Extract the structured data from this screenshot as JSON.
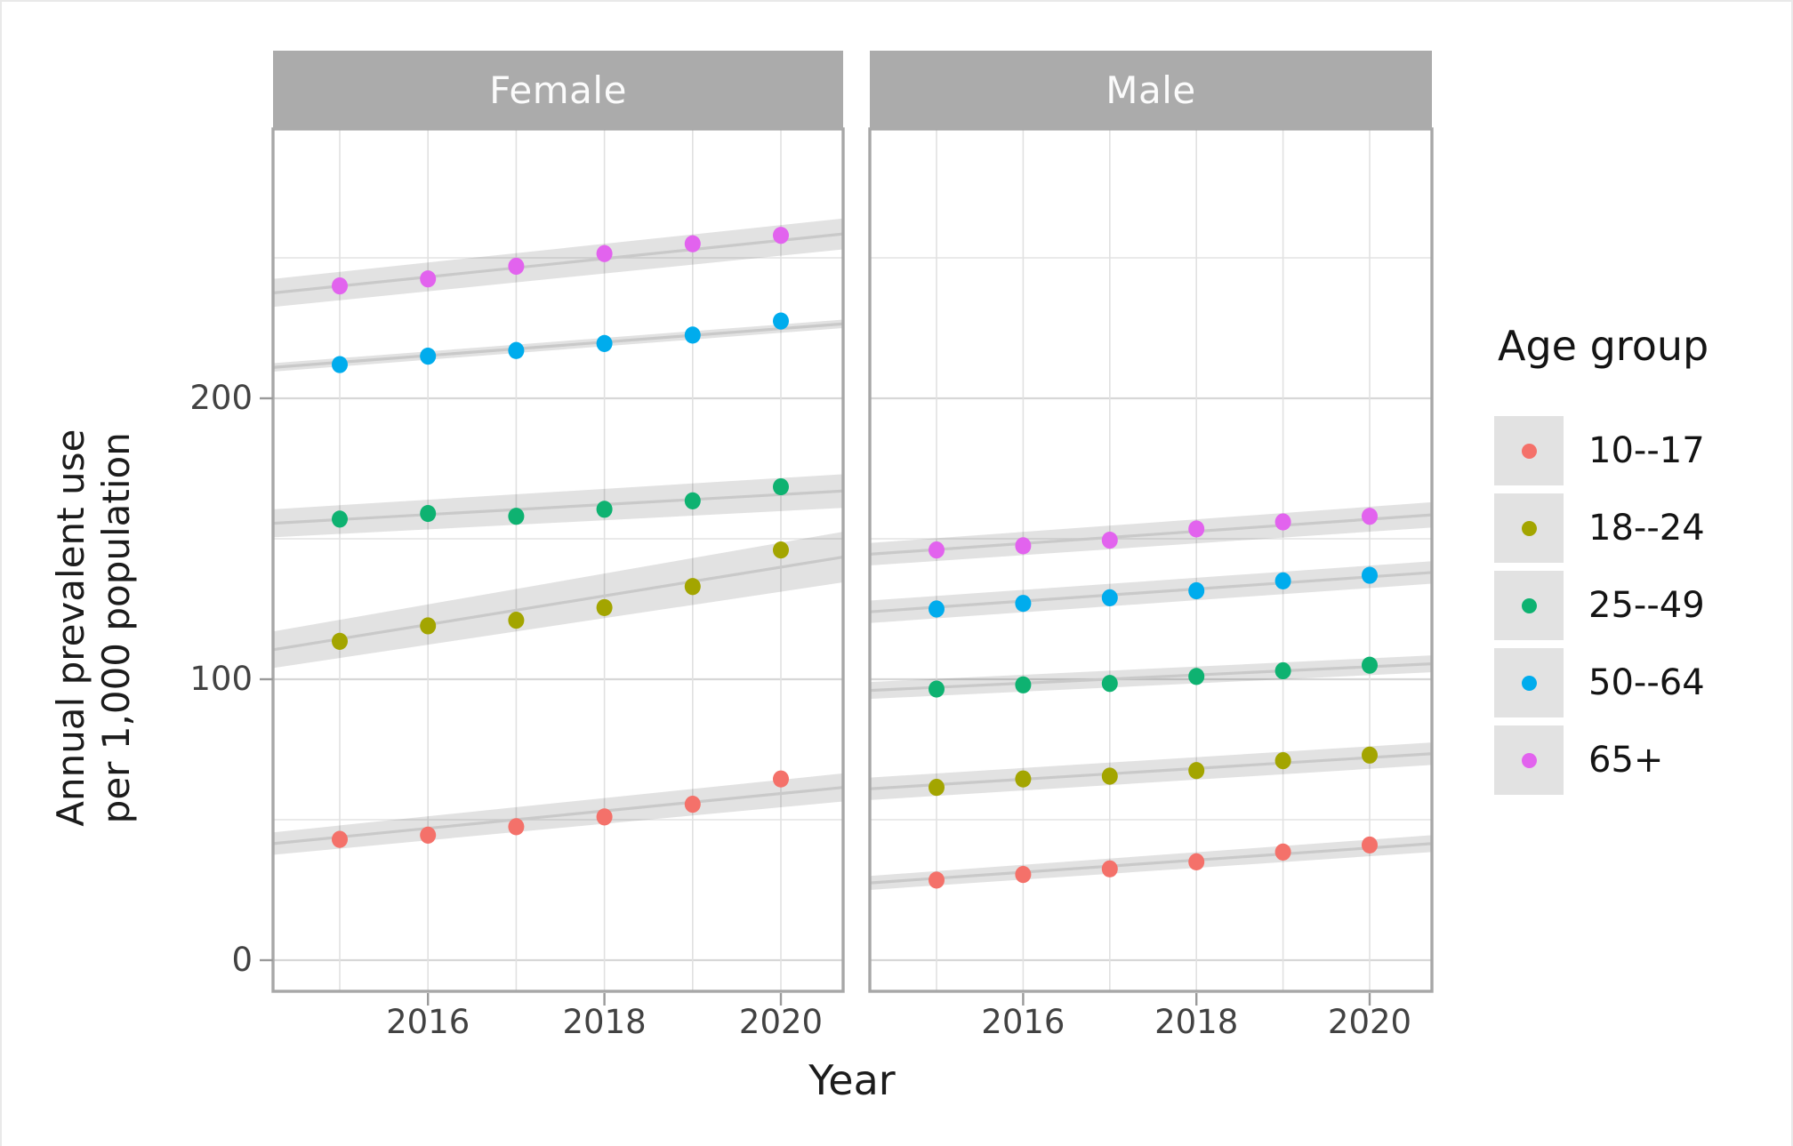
{
  "figure": {
    "x_axis_title": "Year",
    "y_axis_title_line1": "Annual prevalent use",
    "y_axis_title_line2": "per 1,000 population"
  },
  "legend": {
    "title": "Age group"
  },
  "chart_data": {
    "type": "scatter",
    "facets": [
      "Female",
      "Male"
    ],
    "x": [
      2015,
      2016,
      2017,
      2018,
      2019,
      2020
    ],
    "x_tick_labels": [
      "2016",
      "2018",
      "2020"
    ],
    "x_tick_values": [
      2016,
      2018,
      2020
    ],
    "y_tick_labels": [
      "0",
      "100",
      "200"
    ],
    "y_tick_values": [
      0,
      100,
      200
    ],
    "y_minor_values": [
      50,
      150,
      250
    ],
    "ylim": [
      -11,
      296
    ],
    "xlabel": "Year",
    "ylabel": "Annual prevalent use per 1,000 population",
    "legend_title": "Age group",
    "legend_position": "right",
    "grid": true,
    "band_fill": "rgba(0,0,0,0.115)",
    "trend_stroke": "#c9c9c9",
    "series": [
      {
        "name": "10--17",
        "color": "#f4716a",
        "facet_data": {
          "Female": {
            "values": [
              43,
              44.5,
              47.5,
              51,
              55.5,
              64.5
            ],
            "trend": [
              41.5,
              61.5
            ],
            "band_halfwidth": [
              4,
              5
            ]
          },
          "Male": {
            "values": [
              28.5,
              30.5,
              32.5,
              35,
              38.5,
              41
            ],
            "trend": [
              27.5,
              41.5
            ],
            "band_halfwidth": [
              2.5,
              3
            ]
          }
        }
      },
      {
        "name": "18--24",
        "color": "#a3a500",
        "facet_data": {
          "Female": {
            "values": [
              113.5,
              119,
              121,
              125.5,
              133,
              146
            ],
            "trend": [
              110.5,
              143.5
            ],
            "band_halfwidth": [
              6.5,
              9
            ]
          },
          "Male": {
            "values": [
              61.5,
              64.5,
              65.5,
              67.5,
              71,
              73
            ],
            "trend": [
              61,
              73.5
            ],
            "band_halfwidth": [
              4,
              4
            ]
          }
        }
      },
      {
        "name": "25--49",
        "color": "#0eb271",
        "facet_data": {
          "Female": {
            "values": [
              157,
              159,
              158,
              160.5,
              163.5,
              168.5
            ],
            "trend": [
              155.5,
              167
            ],
            "band_halfwidth": [
              5,
              6
            ]
          },
          "Male": {
            "values": [
              96.5,
              98,
              98.5,
              101,
              103,
              105
            ],
            "trend": [
              96,
              105.5
            ],
            "band_halfwidth": [
              3,
              3
            ]
          }
        }
      },
      {
        "name": "50--64",
        "color": "#00aced",
        "facet_data": {
          "Female": {
            "values": [
              212,
              215,
              217,
              219.5,
              222.5,
              227.5
            ],
            "trend": [
              211,
              226.5
            ],
            "band_halfwidth": [
              1.5,
              1.5
            ]
          },
          "Male": {
            "values": [
              125,
              127,
              129,
              131.5,
              135,
              137
            ],
            "trend": [
              124,
              138
            ],
            "band_halfwidth": [
              4,
              4
            ]
          }
        }
      },
      {
        "name": "65+",
        "color": "#e263ee",
        "facet_data": {
          "Female": {
            "values": [
              240,
              242.5,
              247,
              251.5,
              255,
              258
            ],
            "trend": [
              237.5,
              258.5
            ],
            "band_halfwidth": [
              5,
              5.5
            ]
          },
          "Male": {
            "values": [
              146,
              147.5,
              149.5,
              153.5,
              156,
              158
            ],
            "trend": [
              144.5,
              158.5
            ],
            "band_halfwidth": [
              4,
              4.5
            ]
          }
        }
      }
    ]
  }
}
